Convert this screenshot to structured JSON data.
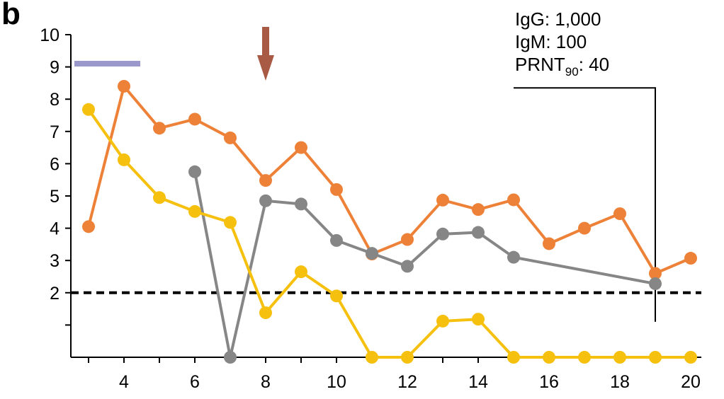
{
  "panel_label": "b",
  "chart_data": {
    "type": "line",
    "title": "",
    "xlabel": "",
    "ylabel": "",
    "xlim": [
      2.5,
      20.3
    ],
    "ylim": [
      0,
      10
    ],
    "x_ticks": [
      4,
      6,
      8,
      10,
      12,
      14,
      16,
      18,
      20
    ],
    "x_minor_ticks": [
      3,
      5,
      7,
      9,
      11,
      13,
      15,
      17,
      19
    ],
    "y_ticks": [
      {
        "value": 1,
        "label": ""
      },
      {
        "value": 2,
        "label": "2"
      },
      {
        "value": 3,
        "label": "3"
      },
      {
        "value": 4,
        "label": "4"
      },
      {
        "value": 5,
        "label": "5"
      },
      {
        "value": 6,
        "label": "6"
      },
      {
        "value": 7,
        "label": "7"
      },
      {
        "value": 8,
        "label": "8"
      },
      {
        "value": 9,
        "label": "9"
      },
      {
        "value": 10,
        "label": "10"
      }
    ],
    "grid": false,
    "legend": "none",
    "threshold": {
      "y": 2,
      "style": "dashed",
      "color": "#000000"
    },
    "series": [
      {
        "color": "#ee8138",
        "points": [
          [
            3,
            4.05
          ],
          [
            4,
            8.4
          ],
          [
            5,
            7.1
          ],
          [
            6,
            7.38
          ],
          [
            7,
            6.8
          ],
          [
            8,
            5.48
          ],
          [
            9,
            6.5
          ],
          [
            10,
            5.2
          ],
          [
            11,
            3.2
          ],
          [
            12,
            3.65
          ],
          [
            13,
            4.87
          ],
          [
            14,
            4.58
          ],
          [
            15,
            4.88
          ],
          [
            16,
            3.52
          ],
          [
            17,
            4.0
          ],
          [
            18,
            4.45
          ],
          [
            19,
            2.6
          ],
          [
            20,
            3.07
          ]
        ]
      },
      {
        "color": "#868686",
        "points": [
          [
            6,
            5.75
          ],
          [
            7,
            0
          ],
          [
            8,
            4.85
          ],
          [
            9,
            4.75
          ],
          [
            10,
            3.62
          ],
          [
            11,
            3.22
          ],
          [
            12,
            2.82
          ],
          [
            13,
            3.82
          ],
          [
            14,
            3.87
          ],
          [
            15,
            3.1
          ],
          [
            19,
            2.28
          ]
        ]
      },
      {
        "color": "#f6c00f",
        "points": [
          [
            3,
            7.68
          ],
          [
            4,
            6.12
          ],
          [
            5,
            4.95
          ],
          [
            6,
            4.52
          ],
          [
            7,
            4.18
          ],
          [
            8,
            1.38
          ],
          [
            9,
            2.65
          ],
          [
            10,
            1.9
          ],
          [
            11,
            0
          ],
          [
            12,
            0
          ],
          [
            13,
            1.12
          ],
          [
            14,
            1.18
          ],
          [
            15,
            0
          ],
          [
            16,
            0
          ],
          [
            17,
            0
          ],
          [
            18,
            0
          ],
          [
            19,
            0
          ],
          [
            20,
            0
          ]
        ]
      }
    ],
    "annotations": {
      "bar": {
        "x_start": 3,
        "x_end": 4.5,
        "y": 9.1,
        "color": "#9b99cc"
      },
      "arrow": {
        "x": 8,
        "color": "#a85a45"
      },
      "bracket": {
        "x_start": 15,
        "x_end": 19,
        "y_top": 8.35,
        "y_bottom": 1.1
      },
      "text_lines": [
        {
          "main": "IgG: 1,000",
          "sub": "",
          "after": ""
        },
        {
          "main": "IgM: 100",
          "sub": "",
          "after": ""
        },
        {
          "main": "PRNT",
          "sub": "90",
          "after": ": 40"
        }
      ]
    }
  }
}
